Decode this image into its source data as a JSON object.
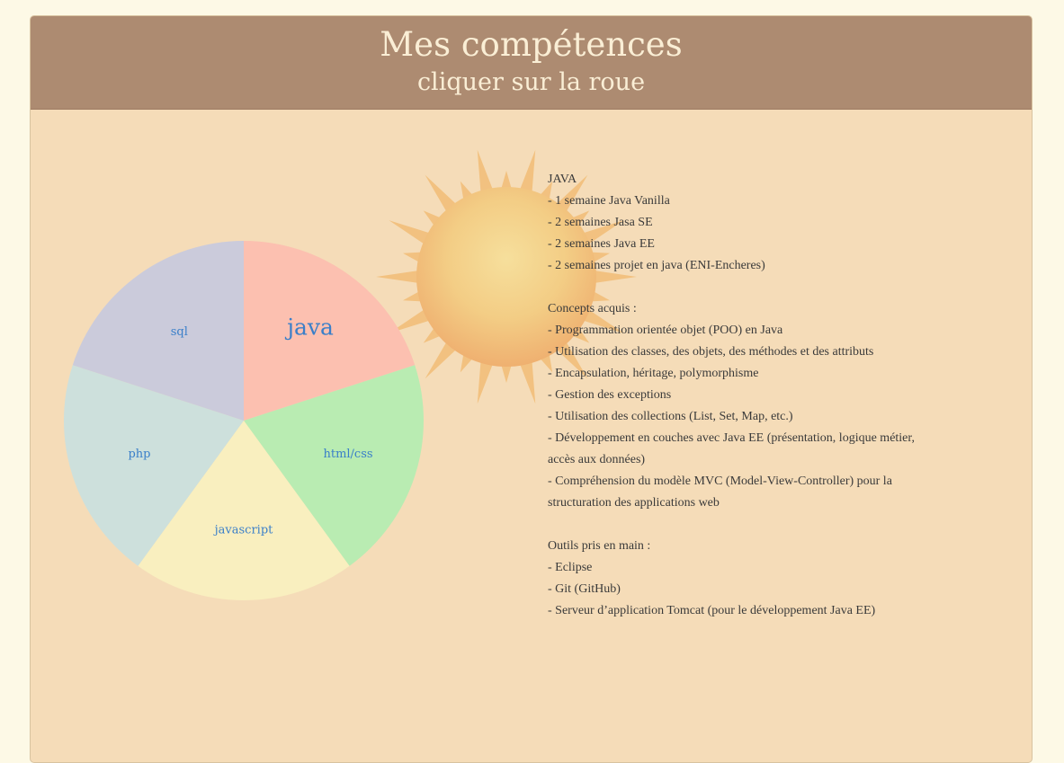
{
  "header": {
    "title": "Mes compétences",
    "subtitle": "cliquer sur la roue"
  },
  "wheel": {
    "slices": [
      {
        "label": "java",
        "color": "#fcc0b0",
        "selected": true
      },
      {
        "label": "html/css",
        "color": "#b9ecb2",
        "selected": false
      },
      {
        "label": "javascript",
        "color": "#f9efbf",
        "selected": false
      },
      {
        "label": "php",
        "color": "#cde0dc",
        "selected": false
      },
      {
        "label": "sql",
        "color": "#cbcbdb",
        "selected": false
      }
    ]
  },
  "detail": {
    "heading": "JAVA",
    "duration_lines": [
      "- 1 semaine Java Vanilla",
      "- 2 semaines Jasa SE",
      "- 2 semaines Java EE",
      "- 2 semaines projet en java (ENI-Encheres)"
    ],
    "concepts_title": "Concepts acquis :",
    "concepts": [
      "- Programmation orientée objet (POO) en Java",
      "- Utilisation des classes, des objets, des méthodes et des attributs",
      "- Encapsulation, héritage, polymorphisme",
      "- Gestion des exceptions",
      "- Utilisation des collections (List, Set, Map, etc.)",
      "- Développement en couches avec Java EE (présentation, logique métier, accès aux données)",
      "- Compréhension du modèle MVC (Model-View-Controller) pour la structuration des applications web"
    ],
    "tools_title": "Outils pris en main :",
    "tools": [
      "- Eclipse",
      "- Git (GitHub)",
      "- Serveur d’application Tomcat (pour le développement Java EE)"
    ]
  },
  "colors": {
    "page_bg": "#fdf9e6",
    "card_bg": "#f5dcb8",
    "header_bg": "#ad8b71",
    "header_text": "#faeed5",
    "label_text": "#3a7fc9",
    "body_text": "#3a3a3a"
  }
}
